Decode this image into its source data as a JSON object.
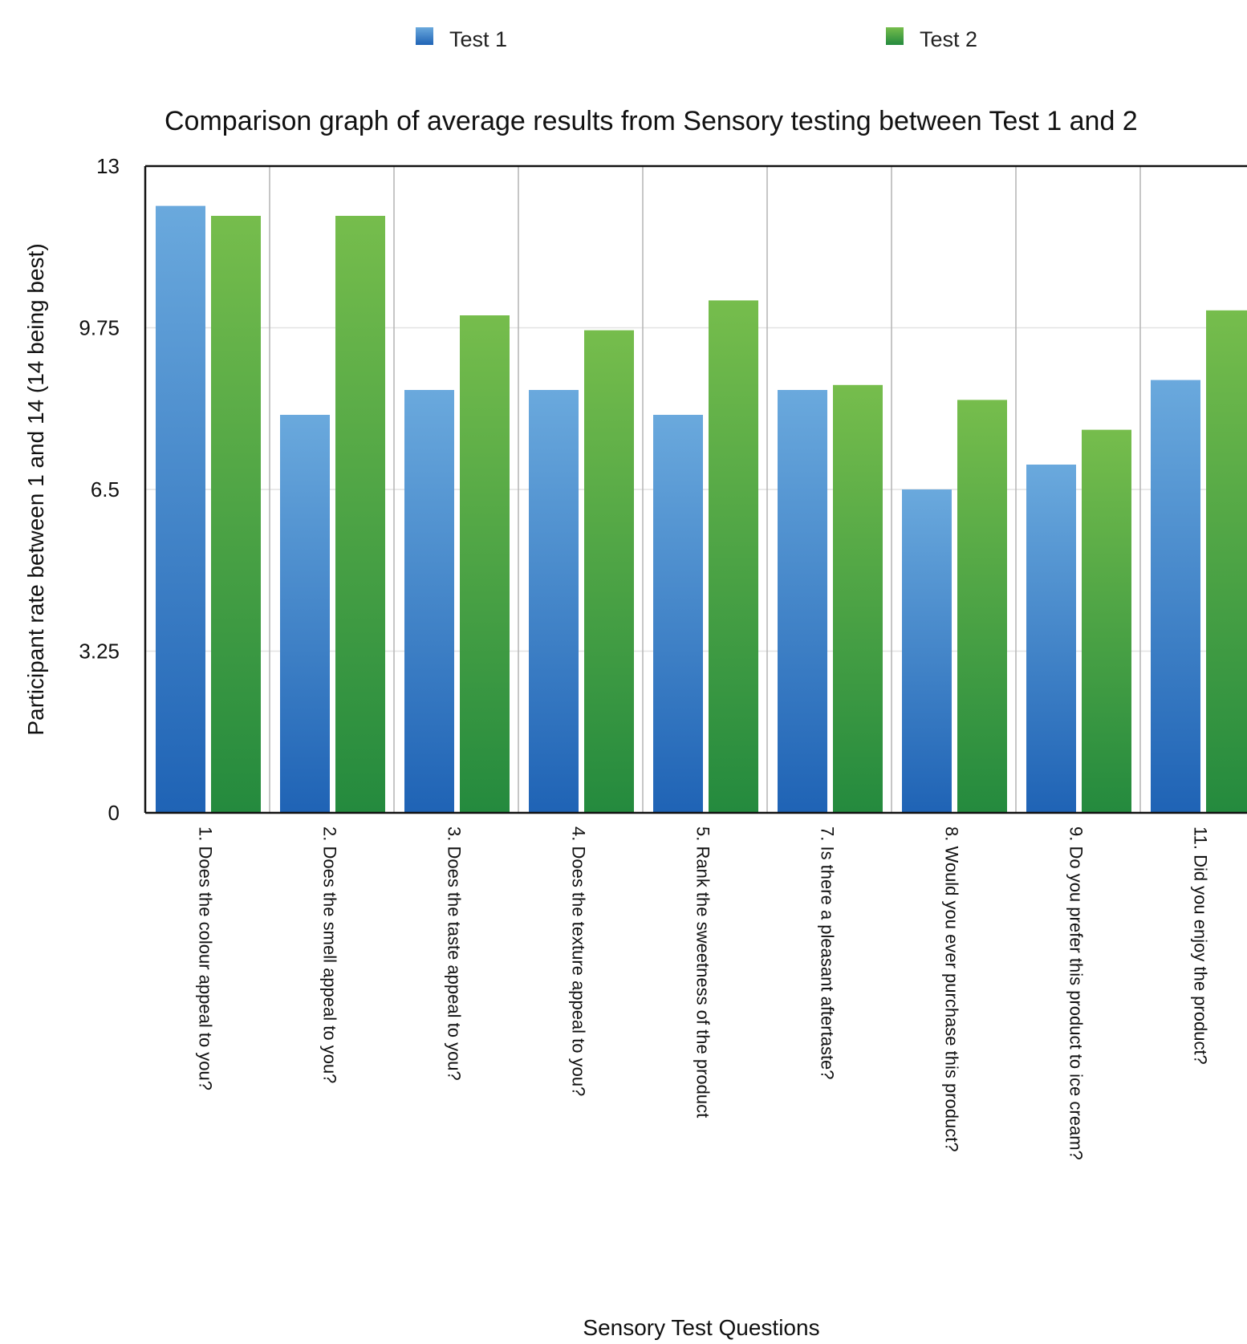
{
  "chart_data": {
    "type": "bar",
    "title": "Comparison graph of average results from Sensory testing between Test 1 and  2",
    "xlabel": "Sensory Test Questions",
    "ylabel": "Participant rate between 1 and 14 (14 being best)",
    "ylim": [
      0,
      13
    ],
    "yticks": [
      "0",
      "3.25",
      "6.5",
      "9.75",
      "13"
    ],
    "grid": true,
    "legend_position": "top",
    "categories": [
      "1. Does the colour appeal to you?",
      "2. Does the smell appeal to you?",
      "3. Does the taste appeal to you?",
      "4. Does the texture appeal to you?",
      "5. Rank the sweetness of the product",
      "7. Is there a pleasant aftertaste?",
      "8. Would you ever purchase this product?",
      "9. Do you prefer this product to ice cream?",
      "11. Did you enjoy the product?"
    ],
    "series": [
      {
        "name": "Test 1",
        "color": "#2e7bc9",
        "values": [
          12.2,
          8.0,
          8.5,
          8.5,
          8.0,
          8.5,
          6.5,
          7.0,
          8.7
        ]
      },
      {
        "name": "Test 2",
        "color": "#3a9e44",
        "values": [
          12.0,
          12.0,
          10.0,
          9.7,
          10.3,
          8.6,
          8.3,
          7.7,
          10.1
        ]
      }
    ]
  }
}
